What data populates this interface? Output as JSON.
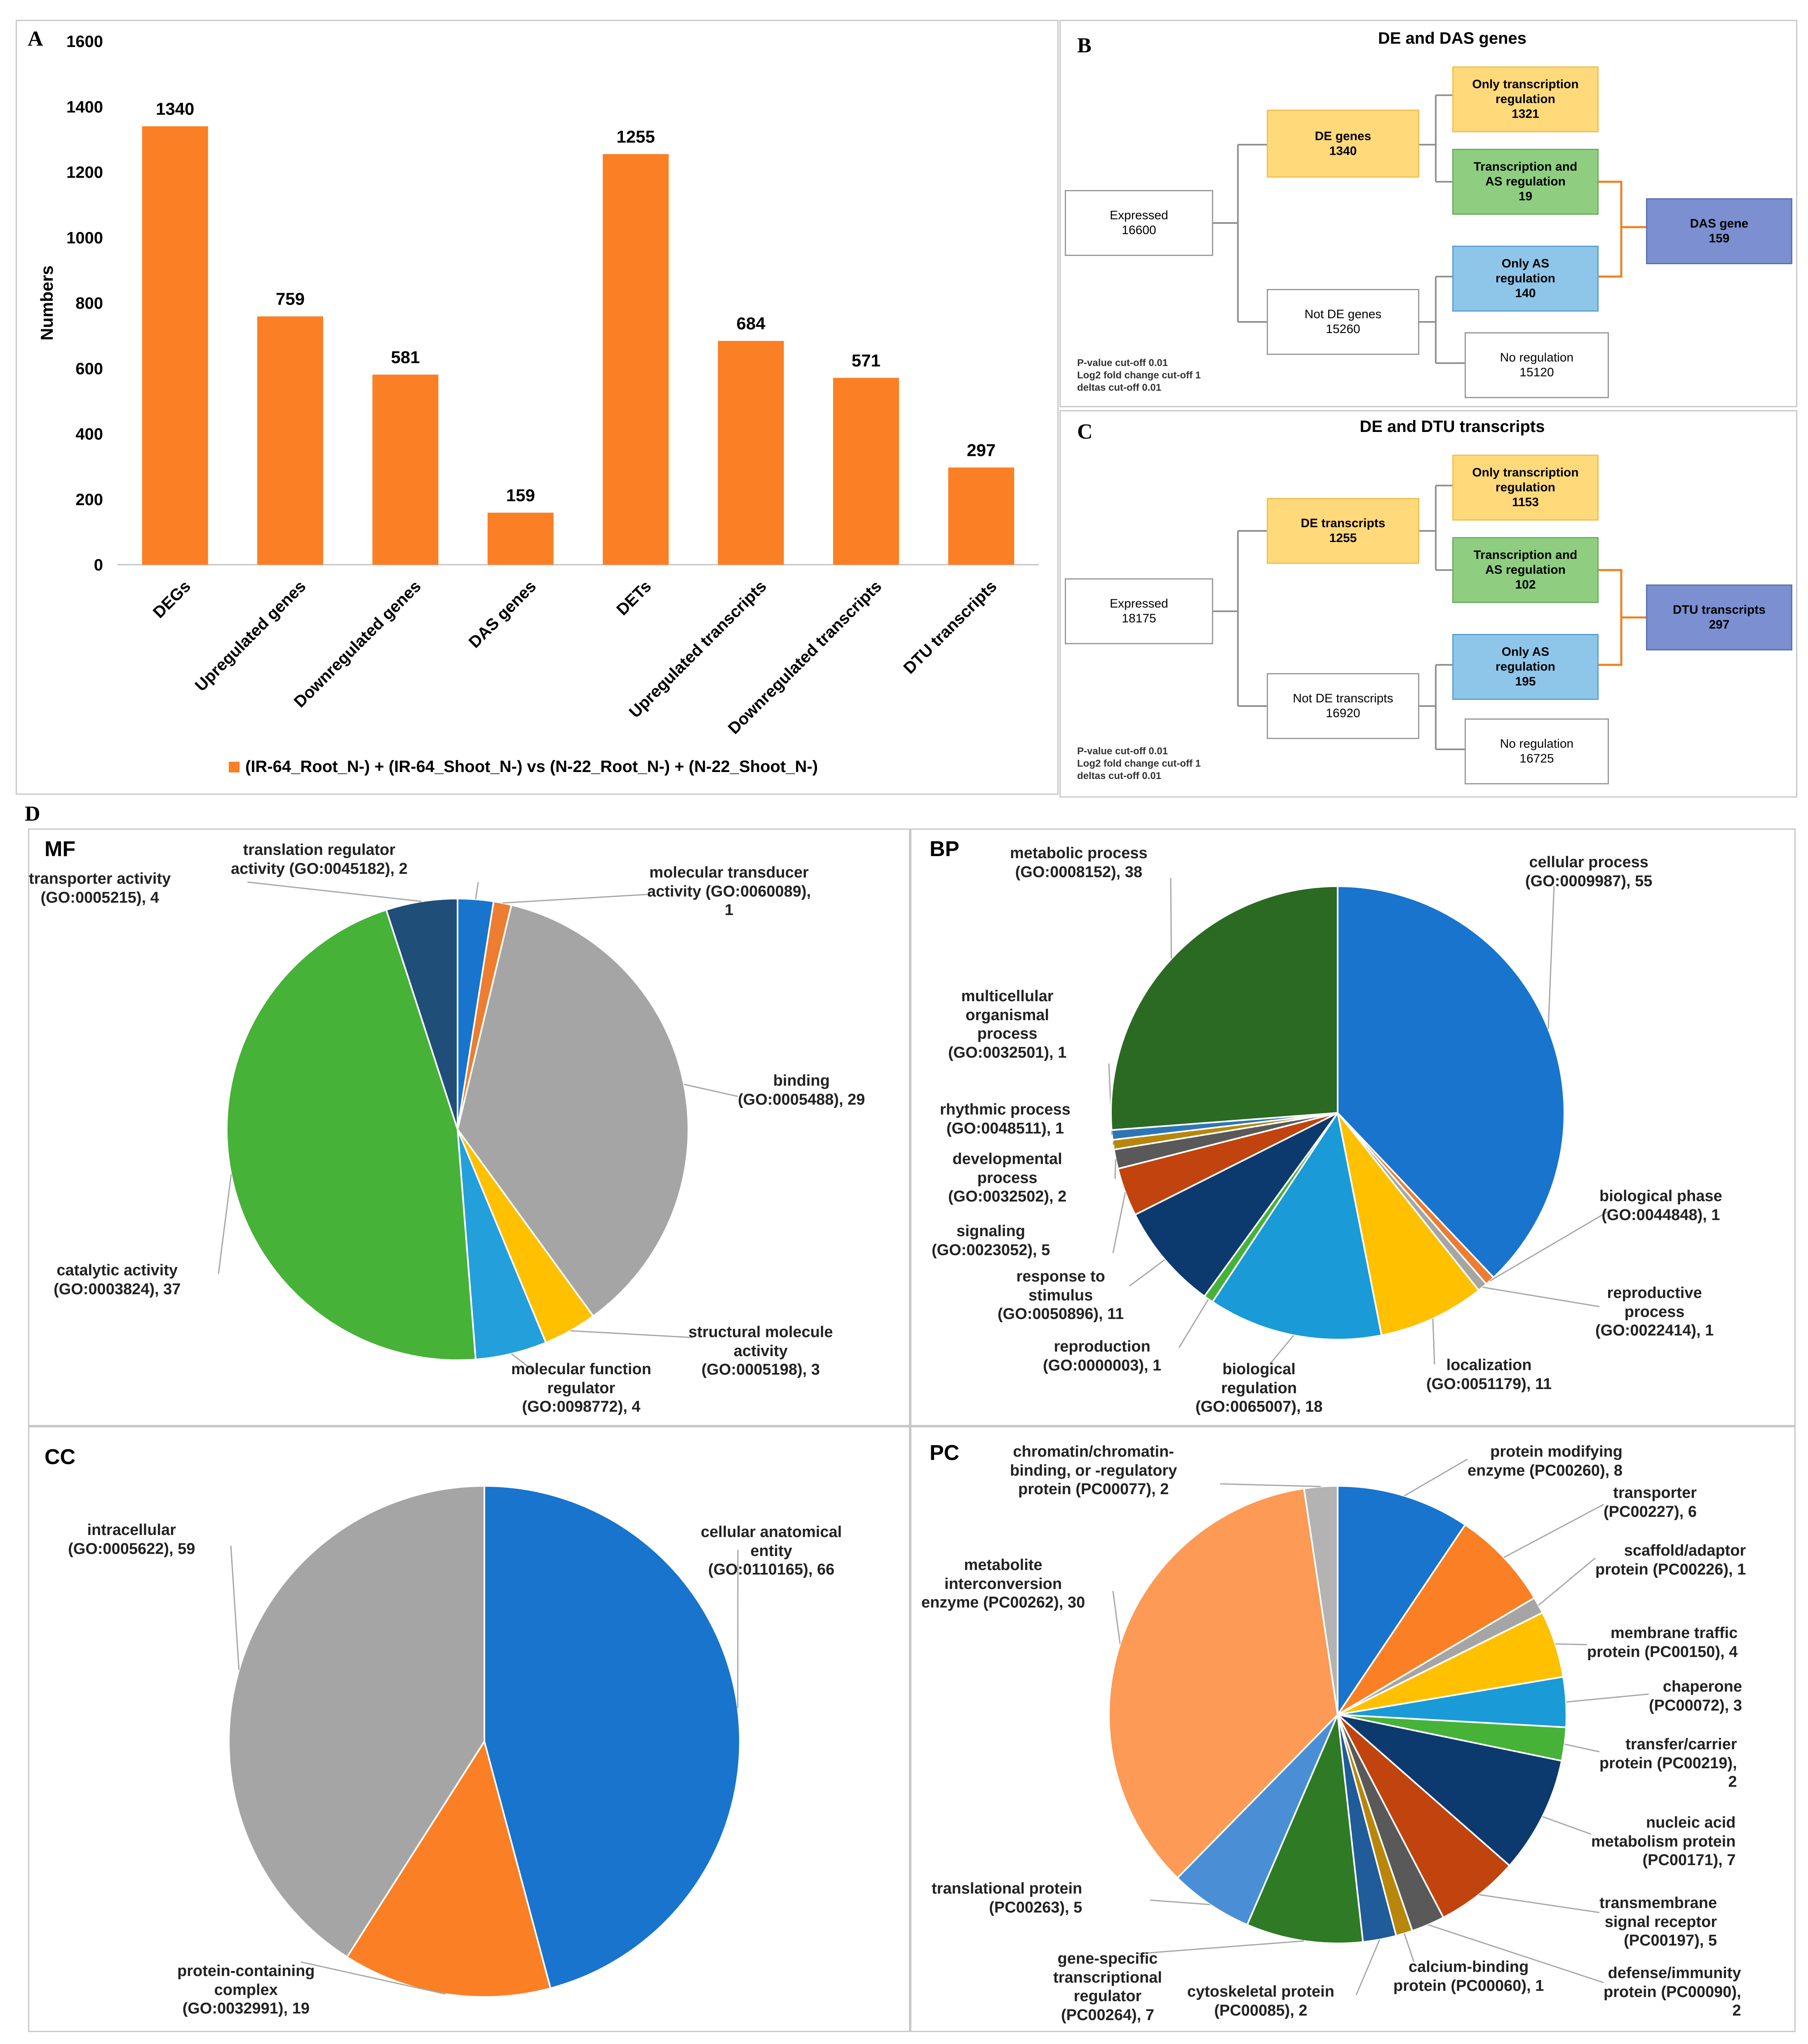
{
  "panel_letters": {
    "a": "A",
    "b": "B",
    "c": "C",
    "d": "D"
  },
  "chart_data": [
    {
      "type": "bar",
      "panel": "A",
      "categories": [
        "DEGs",
        "Upregulated genes",
        "Downregulated genes",
        "DAS genes",
        "DETs",
        "Upregulated transcripts",
        "Downregulated transcripts",
        "DTU transcripts"
      ],
      "values": [
        1340,
        759,
        581,
        159,
        1255,
        684,
        571,
        297
      ],
      "value_labels": [
        "1340",
        "759",
        "581",
        "159",
        "1255",
        "684",
        "571",
        "297"
      ],
      "ylabel": "Numbers",
      "ylim": [
        0,
        1600
      ],
      "yticks": [
        "0",
        "200",
        "400",
        "600",
        "800",
        "1000",
        "1200",
        "1400",
        "1600"
      ],
      "legend": "(IR-64_Root_N-) + (IR-64_Shoot_N-) vs (N-22_Root_N-) + (N-22_Shoot_N-)",
      "color": "#fb7f25"
    },
    {
      "type": "pie",
      "panel": "MF",
      "title": "MF",
      "slices": [
        {
          "label": [
            "translation regulator",
            "activity (GO:0045182), 2"
          ],
          "value": 2,
          "color": "#1874cd"
        },
        {
          "label": [
            "molecular transducer",
            "activity (GO:0060089),",
            "1"
          ],
          "value": 1,
          "color": "#ed7d31"
        },
        {
          "label": [
            "binding",
            "(GO:0005488), 29"
          ],
          "value": 29,
          "color": "#a5a5a5"
        },
        {
          "label": [
            "structural molecule",
            "activity",
            "(GO:0005198), 3"
          ],
          "value": 3,
          "color": "#ffc000"
        },
        {
          "label": [
            "molecular function",
            "regulator",
            "(GO:0098772), 4"
          ],
          "value": 4,
          "color": "#239fdc"
        },
        {
          "label": [
            "catalytic activity",
            "(GO:0003824), 37"
          ],
          "value": 37,
          "color": "#47b238"
        },
        {
          "label": [
            "transporter activity",
            "(GO:0005215), 4"
          ],
          "value": 4,
          "color": "#1f4e79"
        }
      ]
    },
    {
      "type": "pie",
      "panel": "BP",
      "title": "BP",
      "slices": [
        {
          "label": [
            "cellular process",
            "(GO:0009987), 55"
          ],
          "value": 55,
          "color": "#1874cd"
        },
        {
          "label": [
            "biological phase",
            "(GO:0044848), 1"
          ],
          "value": 1,
          "color": "#ed7d31"
        },
        {
          "label": [
            "reproductive",
            "process",
            "(GO:0022414), 1"
          ],
          "value": 1,
          "color": "#a5a5a5"
        },
        {
          "label": [
            "localization",
            "(GO:0051179), 11"
          ],
          "value": 11,
          "color": "#ffc000"
        },
        {
          "label": [
            "biological",
            "regulation",
            "(GO:0065007), 18"
          ],
          "value": 18,
          "color": "#1a9bd7"
        },
        {
          "label": [
            "reproduction",
            "(GO:0000003), 1"
          ],
          "value": 1,
          "color": "#47b238"
        },
        {
          "label": [
            "response to",
            "stimulus",
            "(GO:0050896), 11"
          ],
          "value": 11,
          "color": "#0d3a6e"
        },
        {
          "label": [
            "signaling",
            "(GO:0023052), 5"
          ],
          "value": 5,
          "color": "#c1440e"
        },
        {
          "label": [
            "developmental",
            "process",
            "(GO:0032502), 2"
          ],
          "value": 2,
          "color": "#595959"
        },
        {
          "label": [
            "rhythmic process",
            "(GO:0048511), 1"
          ],
          "value": 1,
          "color": "#b8860b"
        },
        {
          "label": [
            "multicellular",
            "organismal",
            "process",
            "(GO:0032501), 1"
          ],
          "value": 1,
          "color": "#2e75b6"
        },
        {
          "label": [
            "metabolic process",
            "(GO:0008152), 38"
          ],
          "value": 38,
          "color": "#2a6a22"
        }
      ]
    },
    {
      "type": "pie",
      "panel": "CC",
      "title": "CC",
      "slices": [
        {
          "label": [
            "cellular anatomical",
            "entity",
            "(GO:0110165), 66"
          ],
          "value": 66,
          "color": "#1874cd"
        },
        {
          "label": [
            "protein-containing",
            "complex",
            "(GO:0032991), 19"
          ],
          "value": 19,
          "color": "#fb7f25"
        },
        {
          "label": [
            "intracellular",
            "(GO:0005622), 59"
          ],
          "value": 59,
          "color": "#a5a5a5"
        }
      ]
    },
    {
      "type": "pie",
      "panel": "PC",
      "title": "PC",
      "slices": [
        {
          "label": [
            "protein modifying",
            "enzyme (PC00260), 8"
          ],
          "value": 8,
          "color": "#1874cd"
        },
        {
          "label": [
            "transporter",
            "(PC00227), 6"
          ],
          "value": 6,
          "color": "#fb7f25"
        },
        {
          "label": [
            "scaffold/adaptor",
            "protein (PC00226), 1"
          ],
          "value": 1,
          "color": "#a5a5a5"
        },
        {
          "label": [
            "membrane traffic",
            "protein (PC00150), 4"
          ],
          "value": 4,
          "color": "#ffc000"
        },
        {
          "label": [
            "chaperone",
            "(PC00072), 3"
          ],
          "value": 3,
          "color": "#1a9bd7"
        },
        {
          "label": [
            "transfer/carrier",
            "protein (PC00219),",
            "2"
          ],
          "value": 2,
          "color": "#47b238"
        },
        {
          "label": [
            "nucleic acid",
            "metabolism protein",
            "(PC00171), 7"
          ],
          "value": 7,
          "color": "#0d3a6e"
        },
        {
          "label": [
            "transmembrane",
            "signal receptor",
            "(PC00197), 5"
          ],
          "value": 5,
          "color": "#c1440e"
        },
        {
          "label": [
            "defense/immunity",
            "protein (PC00090),",
            "2"
          ],
          "value": 2,
          "color": "#595959"
        },
        {
          "label": [
            "calcium-binding",
            "protein (PC00060), 1"
          ],
          "value": 1,
          "color": "#b8860b"
        },
        {
          "label": [
            "cytoskeletal protein",
            "(PC00085), 2"
          ],
          "value": 2,
          "color": "#1f5c99"
        },
        {
          "label": [
            "gene-specific",
            "transcriptional",
            "regulator",
            "(PC00264), 7"
          ],
          "value": 7,
          "color": "#2f7a25"
        },
        {
          "label": [
            "translational protein",
            "(PC00263), 5"
          ],
          "value": 5,
          "color": "#4a8fd6"
        },
        {
          "label": [
            "metabolite",
            "interconversion",
            "enzyme (PC00262), 30"
          ],
          "value": 30,
          "color": "#fd9a55"
        },
        {
          "label": [
            "chromatin/chromatin-",
            "binding, or -regulatory",
            "protein (PC00077), 2"
          ],
          "value": 2,
          "color": "#b3b3b3"
        }
      ]
    }
  ],
  "diagram_b": {
    "title": "DE and DAS genes",
    "expressed": [
      "Expressed",
      "16600"
    ],
    "de": [
      "DE genes",
      "1340"
    ],
    "not_de": [
      "Not DE genes",
      "15260"
    ],
    "only_tr": [
      "Only transcription",
      "regulation",
      "1321"
    ],
    "tr_as": [
      "Transcription and",
      "AS regulation",
      "19"
    ],
    "only_as": [
      "Only AS",
      "regulation",
      "140"
    ],
    "no_reg": [
      "No regulation",
      "15120"
    ],
    "result": [
      "DAS gene",
      "159"
    ],
    "cutoffs": [
      "P-value cut-off  0.01",
      "Log2 fold change cut-off  1",
      "deltas cut-off  0.01"
    ]
  },
  "diagram_c": {
    "title": "DE and DTU transcripts",
    "expressed": [
      "Expressed",
      "18175"
    ],
    "de": [
      "DE transcripts",
      "1255"
    ],
    "not_de": [
      "Not DE transcripts",
      "16920"
    ],
    "only_tr": [
      "Only transcription",
      "regulation",
      "1153"
    ],
    "tr_as": [
      "Transcription and",
      "AS regulation",
      "102"
    ],
    "only_as": [
      "Only AS",
      "regulation",
      "195"
    ],
    "no_reg": [
      "No regulation",
      "16725"
    ],
    "result": [
      "DTU transcripts",
      "297"
    ],
    "cutoffs": [
      "P-value cut-off  0.01",
      "Log2 fold change cut-off  1",
      "deltas cut-off  0.01"
    ]
  }
}
